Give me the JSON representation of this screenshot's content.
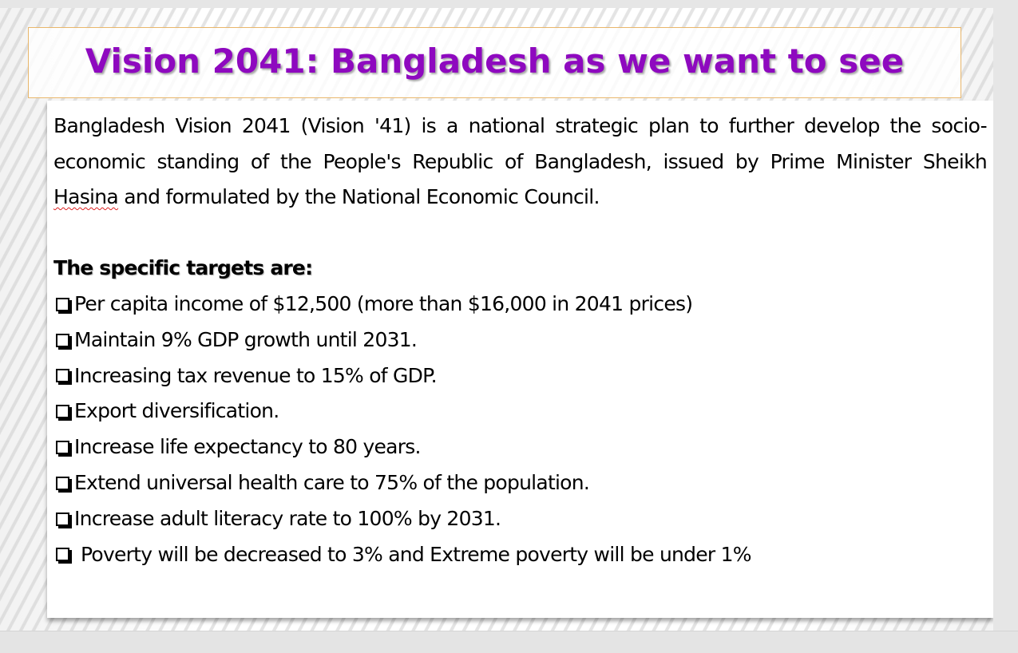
{
  "slide": {
    "title": "Vision 2041: Bangladesh as we want to see",
    "intro": {
      "before_highlight": "Bangladesh Vision 2041 (Vision '41) is a national strategic plan to further develop the socio-economic standing of the People's Republic of Bangladesh, issued by Prime Minister Sheikh ",
      "highlight": "Hasina",
      "after_highlight": " and formulated by the National Economic Council."
    },
    "targets_heading": "The specific targets are:",
    "targets": [
      "Per capita income of $12,500 (more than $16,000 in 2041 prices)",
      "Maintain 9% GDP growth until 2031.",
      "Increasing tax revenue to 15% of GDP.",
      "Export diversification.",
      "Increase life expectancy to 80 years.",
      "Extend universal health care to 75% of the population.",
      "Increase adult literacy rate to 100% by 2031.",
      "Poverty will be decreased to 3% and Extreme poverty will be under 1%"
    ]
  },
  "colors": {
    "title": "#8e09bf",
    "title_border": "#e8b66b",
    "spellcheck_underline": "#dd2222"
  },
  "icons": {
    "bullet": "checkbox-icon"
  }
}
